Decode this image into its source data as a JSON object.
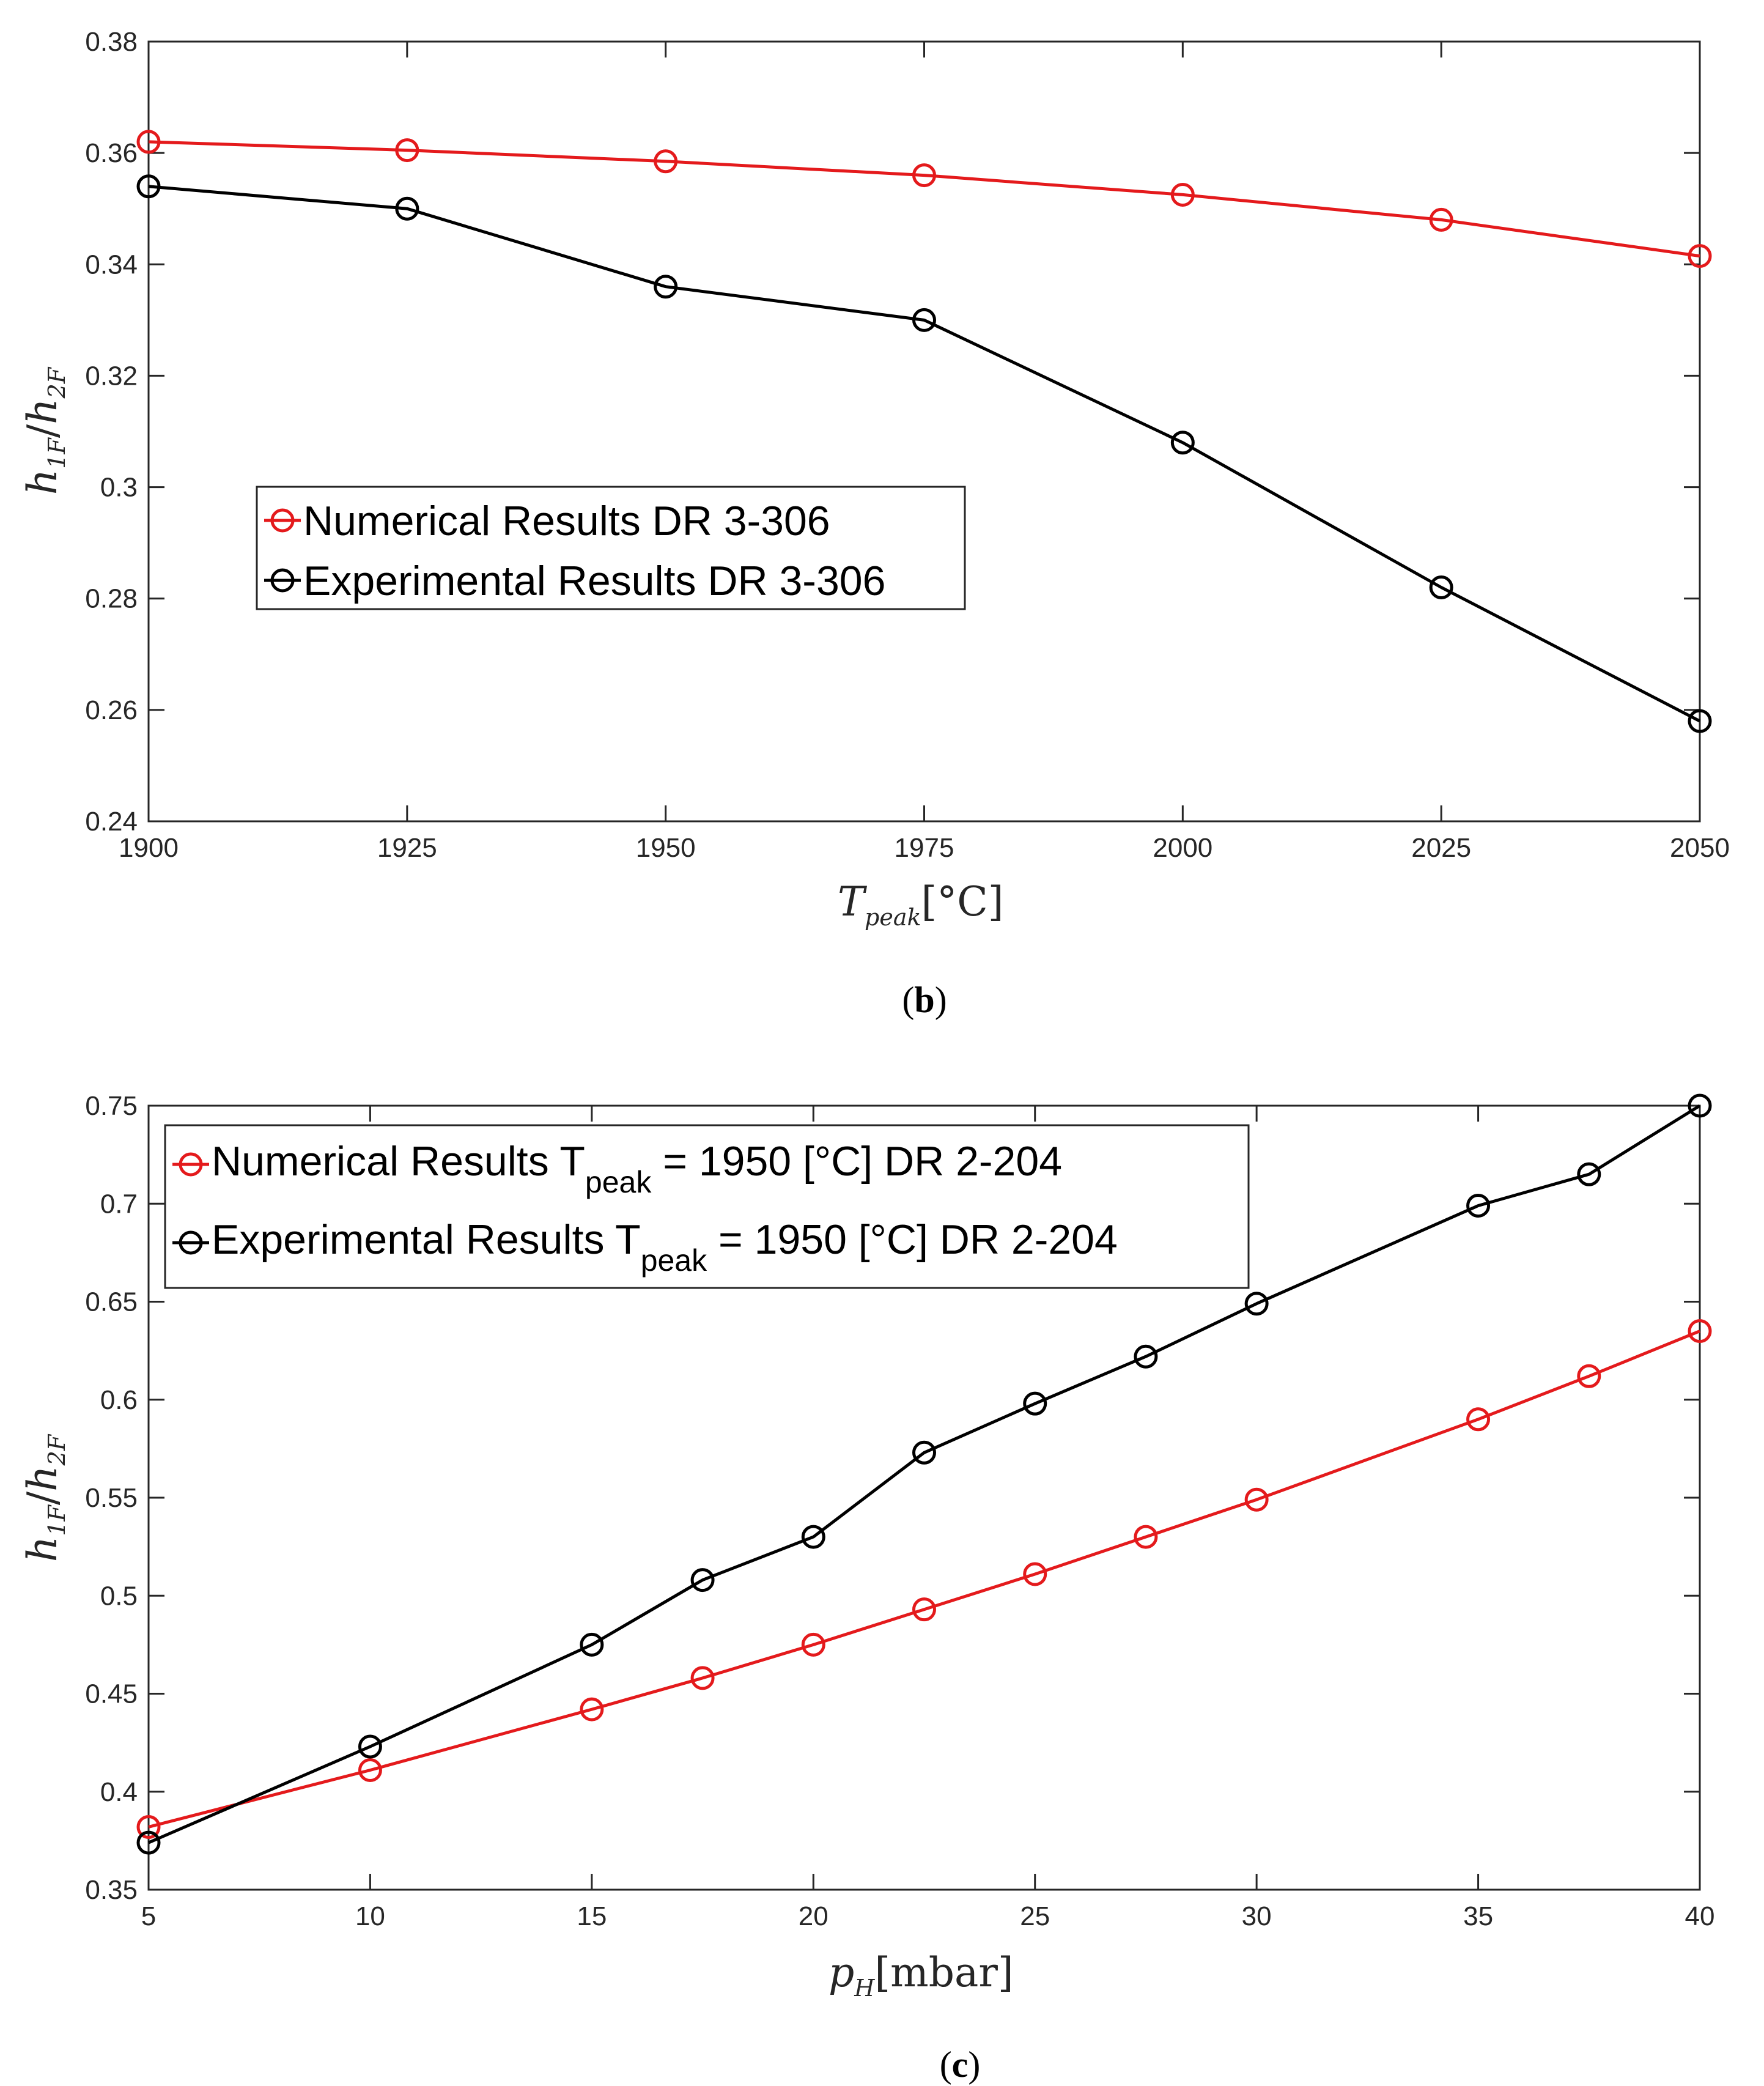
{
  "chart_data": [
    {
      "type": "line",
      "panel": "(b)",
      "xlabel": "T_peak [°C]",
      "xlabel_parts": {
        "main": "T",
        "sub": "peak",
        "unit": "[°C]"
      },
      "ylabel": "h_1F / h_2F",
      "ylabel_parts": {
        "h1": "h",
        "s1": "1F",
        "slash": "/",
        "h2": "h",
        "s2": "2F"
      },
      "xlim": [
        1900,
        2050
      ],
      "ylim": [
        0.24,
        0.38
      ],
      "xticks": [
        "1900",
        "1925",
        "1950",
        "1975",
        "2000",
        "2025",
        "2050"
      ],
      "yticks": [
        "0.24",
        "0.26",
        "0.28",
        "0.3",
        "0.32",
        "0.34",
        "0.36",
        "0.38"
      ],
      "legend_position": "center-left",
      "series": [
        {
          "name": "Numerical Results DR 3-306",
          "label_main": "Numerical Results DR 3-306",
          "color": "#e41a1c",
          "x": [
            1900,
            1925,
            1950,
            1975,
            2000,
            2025,
            2050
          ],
          "values": [
            0.362,
            0.3605,
            0.3585,
            0.356,
            0.3525,
            0.348,
            0.3415
          ]
        },
        {
          "name": "Experimental Results DR 3-306",
          "label_main": "Experimental Results DR 3-306",
          "color": "#000000",
          "x": [
            1900,
            1925,
            1950,
            1975,
            2000,
            2025,
            2050
          ],
          "values": [
            0.354,
            0.35,
            0.336,
            0.33,
            0.308,
            0.282,
            0.258
          ]
        }
      ]
    },
    {
      "type": "line",
      "panel": "(c)",
      "xlabel": "p_H [mbar]",
      "xlabel_parts": {
        "main": "p",
        "sub": "H",
        "unit": "[mbar]"
      },
      "ylabel": "h_1F / h_2F",
      "ylabel_parts": {
        "h1": "h",
        "s1": "1F",
        "slash": "/",
        "h2": "h",
        "s2": "2F"
      },
      "xlim": [
        5,
        40
      ],
      "ylim": [
        0.35,
        0.75
      ],
      "xticks": [
        "5",
        "10",
        "15",
        "20",
        "25",
        "30",
        "35",
        "40"
      ],
      "yticks": [
        "0.35",
        "0.4",
        "0.45",
        "0.5",
        "0.55",
        "0.6",
        "0.65",
        "0.7",
        "0.75"
      ],
      "legend_position": "top-left",
      "series": [
        {
          "name": "Numerical Results T_peak = 1950 [°C] DR 2-204",
          "label_pre": "Numerical Results T",
          "label_sub": "peak",
          "label_post": " = 1950 [°C] DR 2-204",
          "color": "#e41a1c",
          "x": [
            5,
            10,
            15,
            17.5,
            20,
            22.5,
            25,
            27.5,
            30,
            35,
            37.5,
            40
          ],
          "values": [
            0.382,
            0.411,
            0.442,
            0.458,
            0.475,
            0.493,
            0.511,
            0.53,
            0.549,
            0.59,
            0.612,
            0.635
          ]
        },
        {
          "name": "Experimental Results T_peak = 1950 [°C] DR 2-204",
          "label_pre": "Experimental Results T",
          "label_sub": "peak",
          "label_post": " = 1950 [°C] DR 2-204",
          "color": "#000000",
          "x": [
            5,
            10,
            15,
            17.5,
            20,
            22.5,
            25,
            27.5,
            30,
            35,
            37.5,
            40
          ],
          "values": [
            0.374,
            0.423,
            0.475,
            0.508,
            0.53,
            0.573,
            0.598,
            0.622,
            0.649,
            0.699,
            0.715,
            0.75
          ]
        }
      ]
    }
  ]
}
